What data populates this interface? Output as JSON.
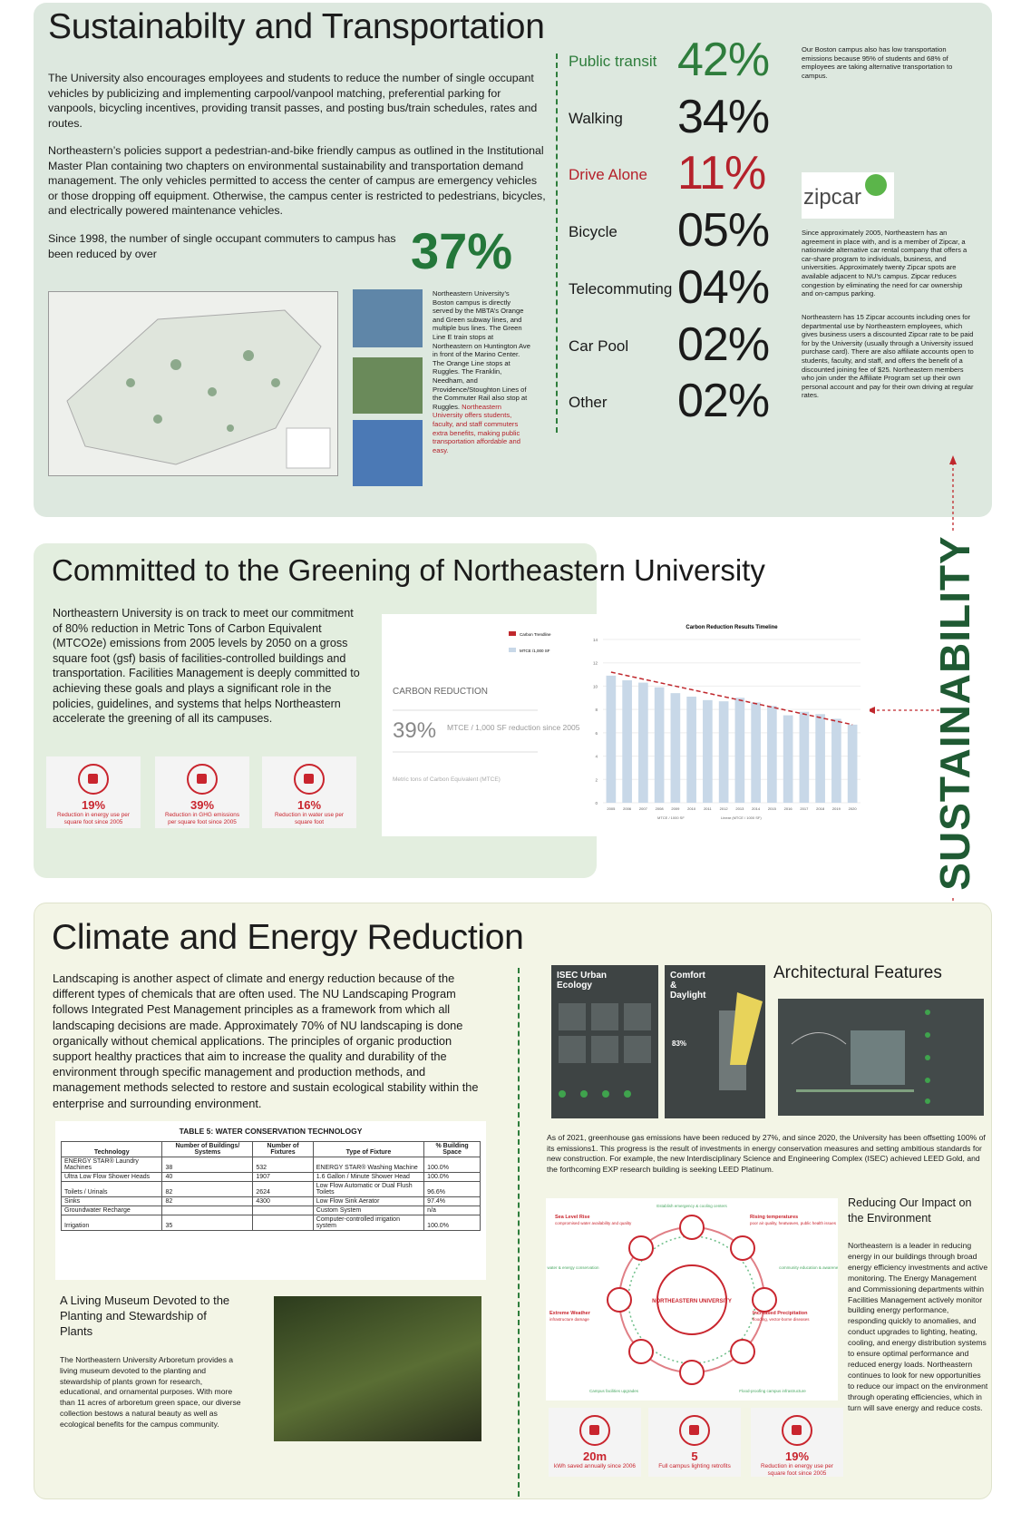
{
  "transportation": {
    "title": "Sustainabilty and Transportation",
    "paragraphs": [
      "The University also encourages employees and students to reduce the number of single occupant vehicles by publicizing and implementing carpool/vanpool matching, preferential parking for vanpools, bicycling incentives, providing transit passes,  and posting bus/train schedules, rates and routes.",
      "Northeastern’s policies support a pedestrian-and-bike friendly campus as outlined in the Institutional Master Plan containing two chapters on environmental sustainability and transportation demand management. The only vehicles permitted to access the center of campus are emergency vehicles or those dropping off equipment. Otherwise, the campus center is restricted to pedestrians, bicycles, and electrically powered maintenance vehicles."
    ],
    "reduction_text": "Since 1998, the number of single occupant commuters to campus has been reduced by over",
    "reduction_value": "37%",
    "photo_caption": "Northeastern University’s Boston campus is directly served by the MBTA’s Orange and Green subway lines, and multiple bus lines. The Green Line E train stops at Northeastern on Huntington Ave in front of the Marino Center. The Orange Line stops at Ruggles. The Franklin, Needham, and Providence/Stoughton Lines of the Commuter Rail also stop at Ruggles.",
    "photo_caption_highlight": "Northeastern University offers students, faculty, and staff commuters extra benefits, making public transportation affordable and easy.",
    "modes": [
      {
        "label": "Public transit",
        "value": "42%",
        "color": "#2e7d3c"
      },
      {
        "label": "Walking",
        "value": "34%",
        "color": "#1a1a1a"
      },
      {
        "label": "Drive Alone",
        "value": "11%",
        "color": "#b5212b"
      },
      {
        "label": "Bicycle",
        "value": "05%",
        "color": "#1a1a1a"
      },
      {
        "label": "Telecommuting",
        "value": "04%",
        "color": "#1a1a1a"
      },
      {
        "label": "Car Pool",
        "value": "02%",
        "color": "#1a1a1a"
      },
      {
        "label": "Other",
        "value": "02%",
        "color": "#1a1a1a"
      }
    ],
    "boston_note": "Our Boston campus also has low transportation emissions because 95% of students and 68% of employees are taking alternative transportation to campus.",
    "zipcar_logo": "zipcar",
    "zipcar_paragraphs": [
      "Since approximately 2005, Northeastern has an agreement in place with, and is a member of Zipcar, a nationwide alternative car rental company that offers a car-share program to individuals, business, and universities. Approximately twenty Zipcar spots are available adjacent to NU’s campus. Zipcar reduces congestion by eliminating the need for car ownership and on-campus parking.",
      "Northeastern has 15 Zipcar accounts including ones for departmental use by Northeastern employees, which gives business users a discounted Zipcar rate to be paid for by the University (usually through a University issued purchase card). There are also affiliate accounts open to students, faculty, and staff, and offers the benefit of a discounted joining fee of $25. Northeastern members who join under the Affiliate Program set up their own personal account and pay for their own driving at regular rates."
    ]
  },
  "greening": {
    "title": "Committed to the Greening of Northeastern University",
    "paragraph": "Northeastern University is on track to meet our commitment of 80% reduction in Metric Tons of Carbon Equivalent (MTCO2e) emissions from 2005 levels by 2050 on a gross square foot (gsf) basis of facilities-controlled buildings and transportation.  Facilities Management is deeply committed to achieving these goals and plays a significant role in the policies, guidelines, and systems that helps Northeastern accelerate the greening of all its campuses.",
    "stats": [
      {
        "value": "19%",
        "caption": "Reduction in energy use per square foot since 2005"
      },
      {
        "value": "39%",
        "caption": "Reduction in GHG emissions per square foot since 2005"
      },
      {
        "value": "16%",
        "caption": "Reduction in water use per square foot"
      }
    ],
    "carbon_panel": {
      "heading": "CARBON REDUCTION",
      "value": "39%",
      "caption": "MTCE / 1,000 SF reduction since 2005",
      "footnote": "Metric tons of Carbon Equivalent (MTCE)"
    },
    "carbon_chart": {
      "type": "bar",
      "title": "Carbon Reduction Results Timeline",
      "categories": [
        "2005",
        "2006",
        "2007",
        "2008",
        "2009",
        "2010",
        "2011",
        "2012",
        "2013",
        "2014",
        "2015",
        "2016",
        "2017",
        "2018",
        "2019",
        "2020"
      ],
      "series": [
        {
          "name": "Carbon Trendline",
          "type": "line",
          "color": "#c0282d",
          "values": [
            11.2,
            10.9,
            10.6,
            10.3,
            10.0,
            9.7,
            9.4,
            9.1,
            8.8,
            8.5,
            8.2,
            7.9,
            7.6,
            7.3,
            7.0,
            6.7
          ]
        },
        {
          "name": "MTCE /1,000 SF",
          "type": "bar",
          "color": "#c8d8e8",
          "values": [
            10.9,
            10.5,
            10.3,
            9.9,
            9.4,
            9.1,
            8.8,
            8.7,
            9.0,
            8.6,
            8.3,
            7.5,
            7.8,
            7.6,
            7.2,
            6.7
          ]
        }
      ],
      "bottom_legend": [
        "MTCE / 1000 SF",
        "Linear (MTCE / 1000 SF)"
      ],
      "ylim": [
        0,
        14
      ],
      "yticks": [
        0,
        2,
        4,
        6,
        8,
        10,
        12,
        14
      ],
      "grid": true
    }
  },
  "climate": {
    "title": "Climate and Energy Reduction",
    "paragraph": "Landscaping is another aspect of climate and energy reduction because of the different types of chemicals that are often used. The NU Landscaping Program follows Integrated Pest Management principles as a framework from which all landscaping decisions are made. Approximately 70% of NU landscaping is done organically without chemical applications. The principles of organic production support healthy practices that aim to increase the quality and durability of the environment through specific management and production methods, and management methods selected to restore and sustain ecological stability within the enterprise and surrounding environment.",
    "table": {
      "title": "TABLE 5: WATER CONSERVATION TECHNOLOGY",
      "columns": [
        "Technology",
        "Number of Buildings/ Systems",
        "Number of Fixtures",
        "Type of Fixture",
        "% Building Space"
      ],
      "rows": [
        [
          "ENERGY STAR® Laundry Machines",
          "38",
          "532",
          "ENERGY STAR® Washing Machine",
          "100.0%"
        ],
        [
          "Ultra Low Flow Shower Heads",
          "40",
          "1907",
          "1.6 Gallon / Minute Shower Head",
          "100.0%"
        ],
        [
          "Toilets / Urinals",
          "82",
          "2624",
          "Low Flow Automatic or Dual Flush Toilets",
          "96.6%"
        ],
        [
          "Sinks",
          "82",
          "4300",
          "Low Flow Sink Aerator",
          "97.4%"
        ],
        [
          "Groundwater Recharge",
          null,
          null,
          "Custom System",
          "n/a"
        ],
        [
          "Irrigation",
          "35",
          null,
          "Computer-controlled irrigation system",
          "100.0%"
        ]
      ]
    },
    "museum_title": "A Living Museum Devoted to the Planting and Stewardship of Plants",
    "museum_text": "The Northeastern University Arboretum provides a living museum devoted to the planting and stewardship of plants grown for research, educational, and ornamental purposes.  With more than 11 acres of arboretum green space, our diverse collection bestows a natural beauty as well as ecological benefits for the campus community.",
    "cards": [
      {
        "title": "ISEC Urban Ecology"
      },
      {
        "title": "Comfort & Daylight",
        "stat": "83%"
      }
    ],
    "architectural_title": "Architectural Features",
    "isec_text": "As of 2021, greenhouse gas emissions have been reduced by 27%, and since 2020, the University has been offsetting 100% of its emissions1. This progress is the result of investments in energy conservation measures and setting ambitious standards for new construction. For example, the new Interdisciplinary Science and Engineering Complex (ISEC) achieved LEED Gold, and the forthcoming EXP research building is seeking LEED Platinum.",
    "diagram": {
      "center": "NORTHEASTERN UNIVERSITY",
      "risks": [
        {
          "title": "Sea Level Rise",
          "text": "compromised water availability and quality"
        },
        {
          "title": "Rising temperatures",
          "text": "poor air quality, heatwaves, public health issues"
        },
        {
          "title": "Extreme Weather",
          "text": "infrastructure damage"
        },
        {
          "title": "Increased Precipitation",
          "text": "flooding, vector-borne diseases"
        }
      ],
      "actions": [
        "Establish emergency & cooling centers",
        "water & energy conservation",
        "community education & awareness",
        "Campus facilities upgrades",
        "Flood-proofing campus infrastructure"
      ]
    },
    "impact_title": "Reducing Our Impact on the Environment",
    "impact_text": "Northeastern is a leader in reducing energy in our buildings through broad energy efficiency investments and active monitoring.  The Energy Management and Commissioning departments within Facilities Management actively monitor building energy performance, responding quickly to anomalies, and conduct upgrades to lighting, heating, cooling, and energy distribution systems to ensure optimal performance and reduced energy loads.  Northeastern continues to look for new opportunities to reduce our impact on the environment through operating efficiencies, which in turn will save energy and reduce costs.",
    "stats": [
      {
        "value": "20m",
        "caption": "kWh saved annually since 2006"
      },
      {
        "value": "5",
        "caption": "Full campus lighting retrofits"
      },
      {
        "value": "19%",
        "caption": "Reduction in energy use per square foot since 2005"
      }
    ]
  },
  "side_label": "SUSTAINABILITY"
}
